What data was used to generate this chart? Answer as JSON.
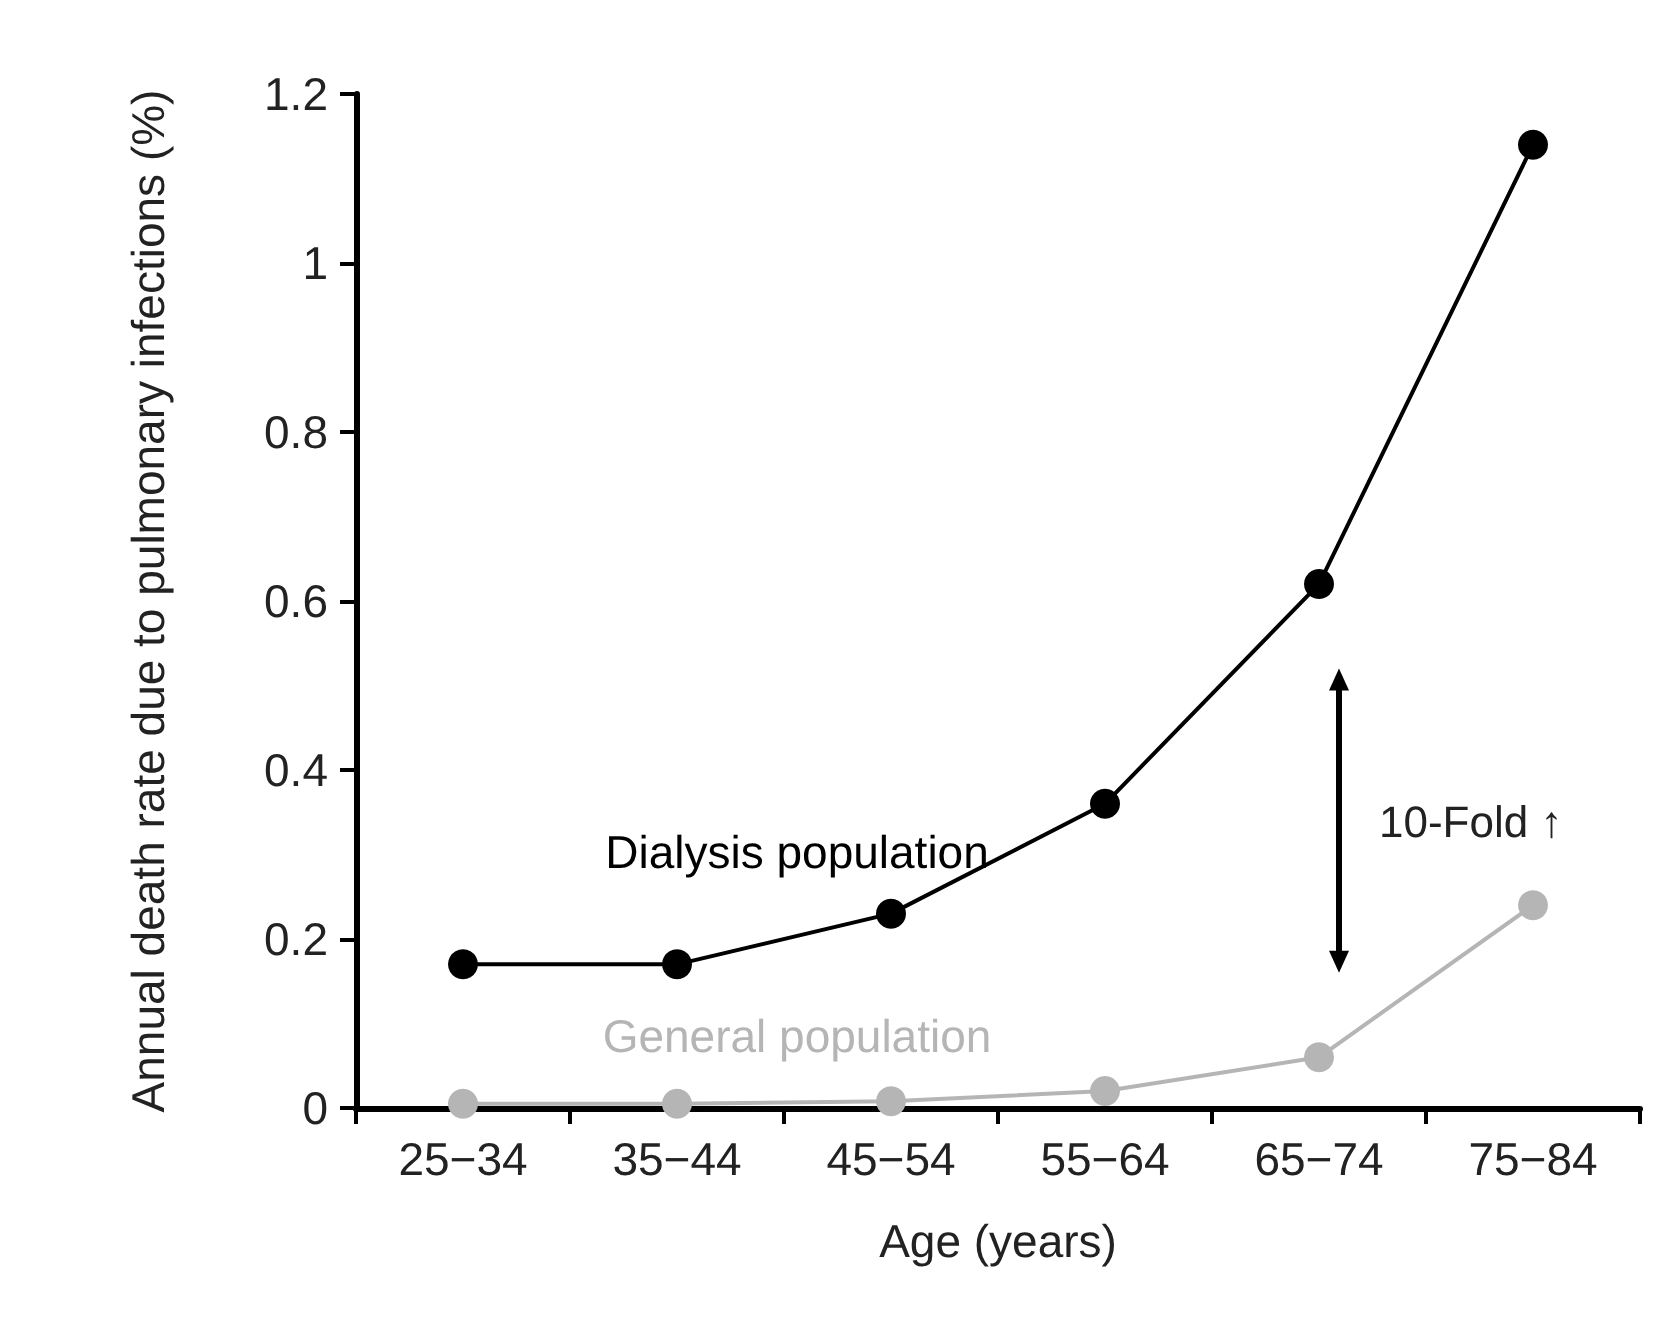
{
  "chart_data": {
    "type": "line",
    "xlabel": "Age (years)",
    "ylabel": "Annual death rate due to pulmonary infections (%)",
    "categories": [
      "25−34",
      "35−44",
      "45−54",
      "55−64",
      "65−74",
      "75−84"
    ],
    "series": [
      {
        "name": "Dialysis population",
        "color": "#000000",
        "values": [
          0.17,
          0.17,
          0.23,
          0.36,
          0.62,
          1.14
        ]
      },
      {
        "name": "General population",
        "color": "#b5b5b5",
        "values": [
          0.005,
          0.005,
          0.008,
          0.02,
          0.06,
          0.24
        ]
      }
    ],
    "annotations": [
      "10-Fold ↑"
    ],
    "ylim": [
      0,
      1.2
    ],
    "yticks": [
      0,
      0.2,
      0.4,
      0.6,
      0.8,
      1,
      1.2
    ],
    "grid": false,
    "legend": false,
    "marker": "circle",
    "line_style": "solid"
  }
}
